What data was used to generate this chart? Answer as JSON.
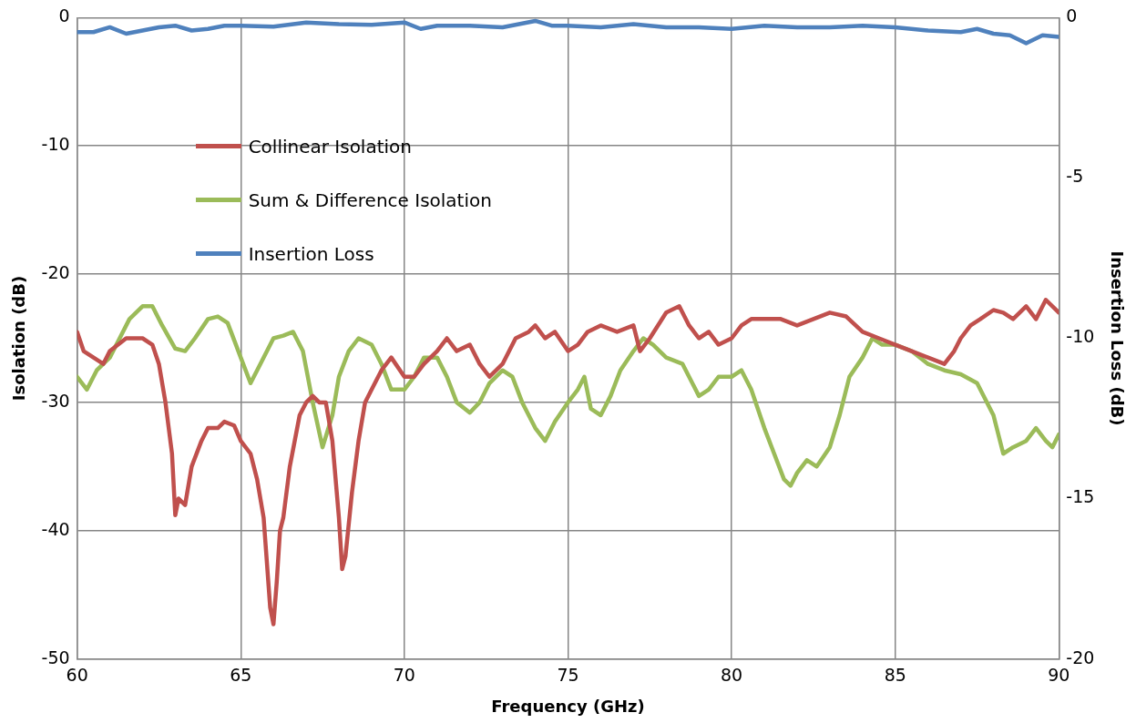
{
  "chart_data": {
    "type": "line",
    "xlabel": "Frequency (GHz)",
    "ylabel": "Isolation (dB)",
    "y2label": "Insertion Loss (dB)",
    "xlim": [
      60,
      90
    ],
    "xticks": [
      60,
      65,
      70,
      75,
      80,
      85,
      90
    ],
    "ylim": [
      -50,
      0
    ],
    "yticks": [
      -50,
      -40,
      -30,
      -20,
      -10,
      0
    ],
    "y2lim": [
      -20,
      0
    ],
    "y2ticks": [
      -20,
      -15,
      -10,
      -5,
      0
    ],
    "grid": true,
    "legend": "top left",
    "marker": "none",
    "line_style": "solid",
    "series": [
      {
        "name": "Collinear Isolation",
        "color": "#c0504d",
        "x": [
          60,
          60.2,
          60.5,
          60.8,
          61,
          61.5,
          62,
          62.3,
          62.5,
          62.7,
          62.9,
          63,
          63.1,
          63.3,
          63.5,
          63.8,
          64,
          64.3,
          64.5,
          64.8,
          65,
          65.3,
          65.5,
          65.7,
          65.9,
          66,
          66.1,
          66.2,
          66.3,
          66.5,
          66.8,
          67,
          67.2,
          67.4,
          67.6,
          67.8,
          68,
          68.1,
          68.2,
          68.4,
          68.6,
          68.8,
          69,
          69.3,
          69.6,
          70,
          70.3,
          70.6,
          71,
          71.3,
          71.6,
          72,
          72.3,
          72.6,
          73,
          73.4,
          73.8,
          74,
          74.3,
          74.6,
          75,
          75.3,
          75.6,
          76,
          76.5,
          77,
          77.2,
          77.5,
          78,
          78.4,
          78.7,
          79,
          79.3,
          79.6,
          80,
          80.3,
          80.6,
          81,
          81.5,
          82,
          82.5,
          83,
          83.5,
          84,
          84.5,
          85,
          85.5,
          86,
          86.5,
          86.8,
          87,
          87.3,
          87.6,
          88,
          88.3,
          88.6,
          89,
          89.3,
          89.6,
          90
        ],
        "values": [
          -24.5,
          -26,
          -26.5,
          -27,
          -26,
          -25,
          -25,
          -25.5,
          -27,
          -30,
          -34,
          -38.8,
          -37.5,
          -38,
          -35,
          -33,
          -32,
          -32,
          -31.5,
          -31.8,
          -33,
          -34,
          -36,
          -39,
          -46,
          -47.3,
          -44,
          -40,
          -39,
          -35,
          -31,
          -30,
          -29.5,
          -30,
          -30,
          -33,
          -39,
          -43,
          -42,
          -37,
          -33,
          -30,
          -29,
          -27.5,
          -26.5,
          -28,
          -28,
          -27,
          -26,
          -25,
          -26,
          -25.5,
          -27,
          -28,
          -27,
          -25,
          -24.5,
          -24,
          -25,
          -24.5,
          -26,
          -25.5,
          -24.5,
          -24,
          -24.5,
          -24,
          -26,
          -25,
          -23,
          -22.5,
          -24,
          -25,
          -24.5,
          -25.5,
          -25,
          -24,
          -23.5,
          -23.5,
          -23.5,
          -24,
          -23.5,
          -23,
          -23.3,
          -24.5,
          -25,
          -25.5,
          -26,
          -26.5,
          -27,
          -26,
          -25,
          -24,
          -23.5,
          -22.8,
          -23,
          -23.5,
          -22.5,
          -23.5,
          -22,
          -23
        ]
      },
      {
        "name": "Sum & Difference Isolation",
        "color": "#9bbb59",
        "x": [
          60,
          60.3,
          60.6,
          61,
          61.3,
          61.6,
          62,
          62.3,
          62.6,
          63,
          63.3,
          63.6,
          64,
          64.3,
          64.6,
          65,
          65.3,
          65.6,
          66,
          66.3,
          66.6,
          66.9,
          67.2,
          67.5,
          67.8,
          68,
          68.3,
          68.6,
          69,
          69.3,
          69.6,
          70,
          70.3,
          70.6,
          71,
          71.3,
          71.6,
          72,
          72.3,
          72.6,
          73,
          73.3,
          73.6,
          74,
          74.3,
          74.6,
          75,
          75.3,
          75.5,
          75.7,
          76,
          76.3,
          76.6,
          77,
          77.3,
          77.6,
          78,
          78.5,
          79,
          79.3,
          79.6,
          80,
          80.3,
          80.6,
          81,
          81.3,
          81.6,
          81.8,
          82,
          82.3,
          82.6,
          83,
          83.3,
          83.6,
          84,
          84.3,
          84.6,
          85,
          85.5,
          86,
          86.5,
          87,
          87.5,
          88,
          88.3,
          88.6,
          89,
          89.3,
          89.6,
          89.8,
          90
        ],
        "values": [
          -28,
          -29,
          -27.5,
          -26.5,
          -25,
          -23.5,
          -22.5,
          -22.5,
          -24,
          -25.8,
          -26,
          -25,
          -23.5,
          -23.3,
          -23.8,
          -26.5,
          -28.5,
          -27,
          -25,
          -24.8,
          -24.5,
          -26,
          -30,
          -33.5,
          -31,
          -28,
          -26,
          -25,
          -25.5,
          -27,
          -29,
          -29,
          -28,
          -26.5,
          -26.5,
          -28,
          -30,
          -30.8,
          -30,
          -28.5,
          -27.5,
          -28,
          -30,
          -32,
          -33,
          -31.5,
          -30,
          -29,
          -28,
          -30.5,
          -31,
          -29.5,
          -27.5,
          -26,
          -25,
          -25.5,
          -26.5,
          -27,
          -29.5,
          -29,
          -28,
          -28,
          -27.5,
          -29,
          -32,
          -34,
          -36,
          -36.5,
          -35.5,
          -34.5,
          -35,
          -33.5,
          -31,
          -28,
          -26.5,
          -25,
          -25.5,
          -25.5,
          -26,
          -27,
          -27.5,
          -27.8,
          -28.5,
          -31,
          -34,
          -33.5,
          -33,
          -32,
          -33,
          -33.5,
          -32.5
        ]
      },
      {
        "name": "Insertion Loss",
        "color": "#4f81bd",
        "axis": "y2",
        "x": [
          60,
          60.5,
          61,
          61.5,
          62,
          62.5,
          63,
          63.5,
          64,
          64.5,
          65,
          66,
          67,
          68,
          69,
          70,
          70.5,
          71,
          72,
          73,
          74,
          74.5,
          75,
          76,
          77,
          78,
          79,
          80,
          81,
          82,
          83,
          84,
          85,
          86,
          87,
          87.5,
          88,
          88.5,
          89,
          89.5,
          90
        ],
        "values": [
          -0.45,
          -0.45,
          -0.3,
          -0.5,
          -0.4,
          -0.3,
          -0.25,
          -0.4,
          -0.35,
          -0.25,
          -0.25,
          -0.28,
          -0.15,
          -0.2,
          -0.22,
          -0.15,
          -0.35,
          -0.25,
          -0.25,
          -0.3,
          -0.1,
          -0.25,
          -0.25,
          -0.3,
          -0.2,
          -0.3,
          -0.3,
          -0.35,
          -0.25,
          -0.3,
          -0.3,
          -0.25,
          -0.3,
          -0.4,
          -0.45,
          -0.35,
          -0.5,
          -0.55,
          -0.8,
          -0.55,
          -0.6
        ]
      }
    ]
  }
}
